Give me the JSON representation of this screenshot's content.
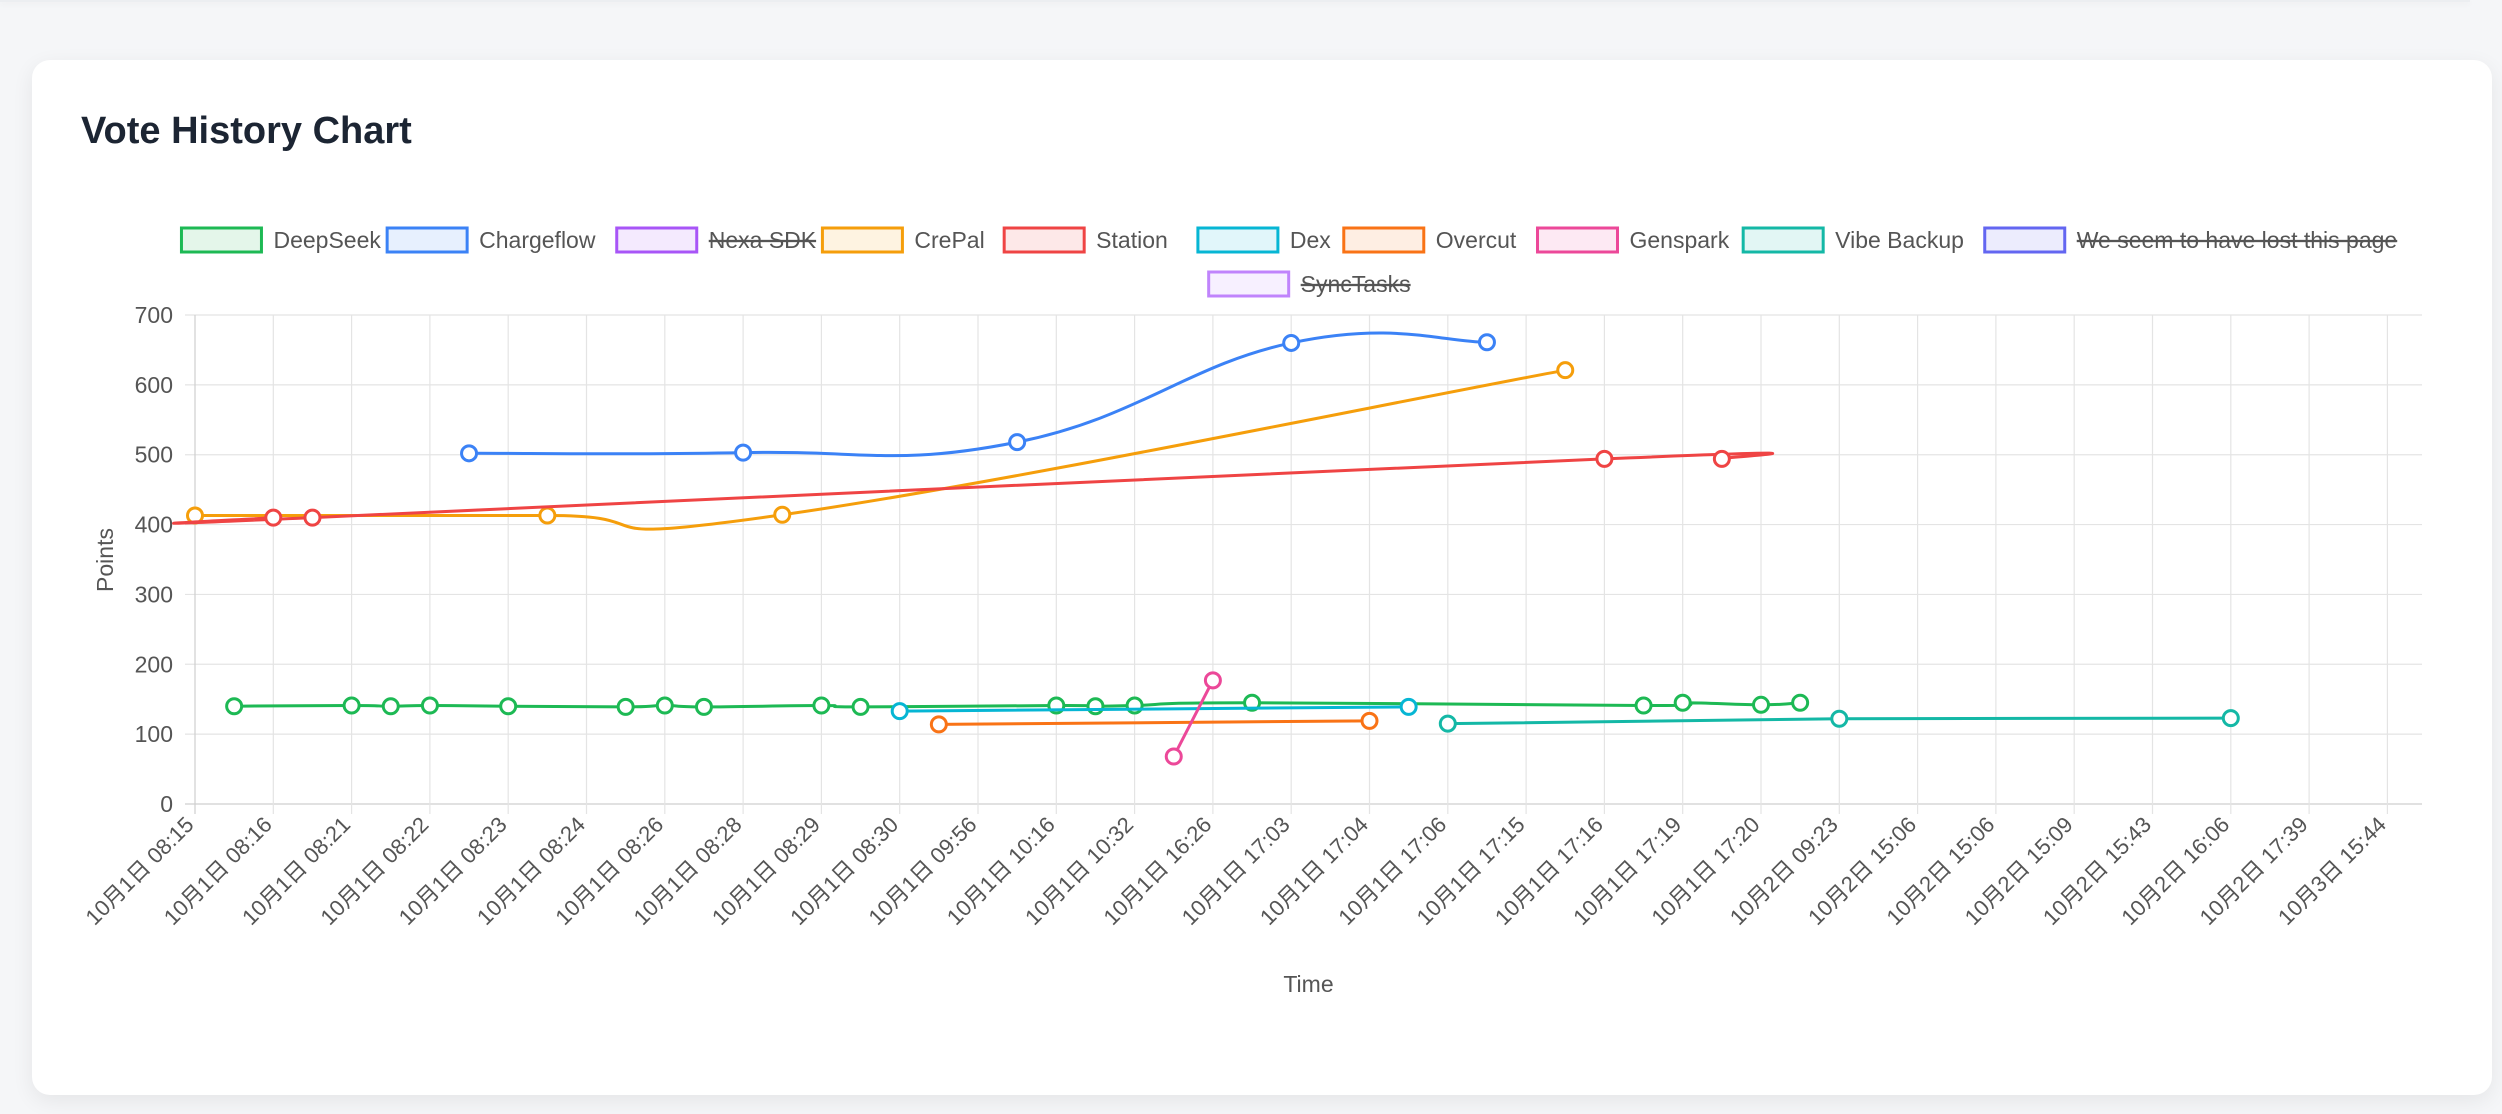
{
  "card": {
    "title": "Vote History Chart"
  },
  "chart_data": {
    "type": "line",
    "ylabel": "Points",
    "xlabel": "Time",
    "ylim": [
      0,
      700
    ],
    "yticks": [
      0,
      100,
      200,
      300,
      400,
      500,
      600,
      700
    ],
    "grid": true,
    "legend_position": "top",
    "categories": [
      "10月1日 08:15",
      "10月1日 08:16",
      "10月1日 08:21",
      "10月1日 08:22",
      "10月1日 08:23",
      "10月1日 08:24",
      "10月1日 08:26",
      "10月1日 08:28",
      "10月1日 08:29",
      "10月1日 08:30",
      "10月1日 09:56",
      "10月1日 10:16",
      "10月1日 10:32",
      "10月1日 16:26",
      "10月1日 17:03",
      "10月1日 17:04",
      "10月1日 17:06",
      "10月1日 17:15",
      "10月1日 17:16",
      "10月1日 17:19",
      "10月1日 17:20",
      "10月2日 09:23",
      "10月2日 15:06",
      "10月2日 15:06",
      "10月2日 15:09",
      "10月2日 15:43",
      "10月2日 16:06",
      "10月2日 17:39",
      "10月3日 15:44"
    ],
    "series": [
      {
        "name": "DeepSeek",
        "color": "#1db954",
        "hidden": false,
        "points": [
          [
            0.5,
            140
          ],
          [
            2,
            141
          ],
          [
            2.5,
            140
          ],
          [
            3,
            141
          ],
          [
            4,
            140
          ],
          [
            5.5,
            139
          ],
          [
            6,
            141
          ],
          [
            6.5,
            139
          ],
          [
            8,
            141
          ],
          [
            8.5,
            139
          ],
          [
            11,
            141
          ],
          [
            11.5,
            140
          ],
          [
            12,
            141
          ],
          [
            13.5,
            145
          ],
          [
            18.5,
            141
          ],
          [
            19,
            145
          ],
          [
            20,
            142
          ],
          [
            20.5,
            145
          ]
        ]
      },
      {
        "name": "Chargeflow",
        "color": "#3b82f6",
        "hidden": false,
        "points": [
          [
            3.5,
            502
          ],
          [
            7,
            503
          ],
          [
            10.5,
            518
          ],
          [
            14,
            660
          ],
          [
            16.5,
            661
          ]
        ]
      },
      {
        "name": "Nexa SDK",
        "color": "#a855f7",
        "hidden": true,
        "points": []
      },
      {
        "name": "CrePal",
        "color": "#f59e0b",
        "hidden": false,
        "points": [
          [
            0,
            413
          ],
          [
            4.5,
            413
          ],
          [
            7.5,
            414
          ],
          [
            17.5,
            621
          ]
        ]
      },
      {
        "name": "Station",
        "color": "#ef4444",
        "hidden": false,
        "points": [
          [
            1,
            410
          ],
          [
            1.5,
            410
          ],
          [
            18,
            494
          ],
          [
            19.5,
            494
          ]
        ]
      },
      {
        "name": "Dex",
        "color": "#06b6d4",
        "hidden": false,
        "points": [
          [
            9,
            133
          ],
          [
            15.5,
            139
          ]
        ]
      },
      {
        "name": "Overcut",
        "color": "#f97316",
        "hidden": false,
        "points": [
          [
            9.5,
            114
          ],
          [
            15,
            119
          ]
        ]
      },
      {
        "name": "Genspark",
        "color": "#ec4899",
        "hidden": false,
        "points": [
          [
            12.5,
            68
          ],
          [
            13,
            177
          ]
        ]
      },
      {
        "name": "Vibe Backup",
        "color": "#14b8a6",
        "hidden": false,
        "points": [
          [
            16,
            115
          ],
          [
            21,
            122
          ],
          [
            26,
            123
          ]
        ]
      },
      {
        "name": "We seem to have lost this page",
        "color": "#6366f1",
        "hidden": true,
        "points": []
      },
      {
        "name": "SyncTasks",
        "color": "#c084fc",
        "hidden": true,
        "points": []
      }
    ]
  }
}
